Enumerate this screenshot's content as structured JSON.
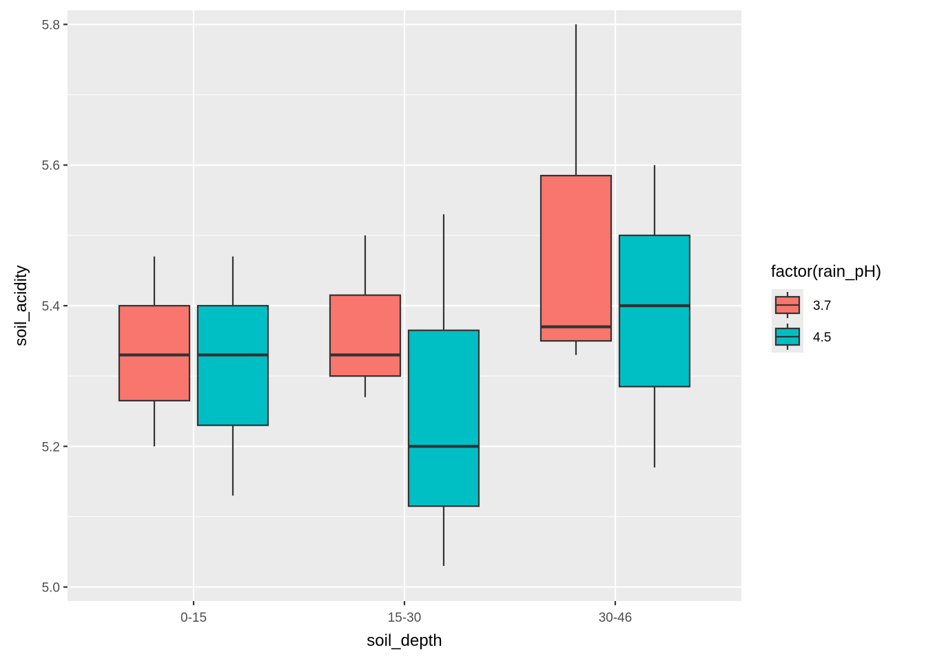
{
  "chart_data": {
    "type": "boxplot",
    "xlabel": "soil_depth",
    "ylabel": "soil_acidity",
    "categories": [
      "0-15",
      "15-30",
      "30-46"
    ],
    "ylim": [
      4.98,
      5.82
    ],
    "yticks_major": [
      5.0,
      5.2,
      5.4,
      5.6,
      5.8
    ],
    "ytick_labels": [
      "5.0",
      "5.2",
      "5.4",
      "5.6",
      "5.8"
    ],
    "yticks_minor": [
      5.1,
      5.3,
      5.5,
      5.7
    ],
    "grid": true,
    "panel_background": "#EBEBEB",
    "legend": {
      "title": "factor(rain_pH)",
      "position": "right",
      "entries": [
        {
          "label": "3.7",
          "color": "#F8766D"
        },
        {
          "label": "4.5",
          "color": "#00BFC4"
        }
      ]
    },
    "series": [
      {
        "name": "3.7",
        "color": "#F8766D",
        "boxes": [
          {
            "category": "0-15",
            "min": 5.2,
            "q1": 5.265,
            "median": 5.33,
            "q3": 5.4,
            "max": 5.47
          },
          {
            "category": "15-30",
            "min": 5.27,
            "q1": 5.3,
            "median": 5.33,
            "q3": 5.415,
            "max": 5.5
          },
          {
            "category": "30-46",
            "min": 5.33,
            "q1": 5.35,
            "median": 5.37,
            "q3": 5.585,
            "max": 5.8
          }
        ]
      },
      {
        "name": "4.5",
        "color": "#00BFC4",
        "boxes": [
          {
            "category": "0-15",
            "min": 5.13,
            "q1": 5.23,
            "median": 5.33,
            "q3": 5.4,
            "max": 5.47
          },
          {
            "category": "15-30",
            "min": 5.03,
            "q1": 5.115,
            "median": 5.2,
            "q3": 5.365,
            "max": 5.53
          },
          {
            "category": "30-46",
            "min": 5.17,
            "q1": 5.285,
            "median": 5.4,
            "q3": 5.5,
            "max": 5.6
          }
        ]
      }
    ]
  }
}
